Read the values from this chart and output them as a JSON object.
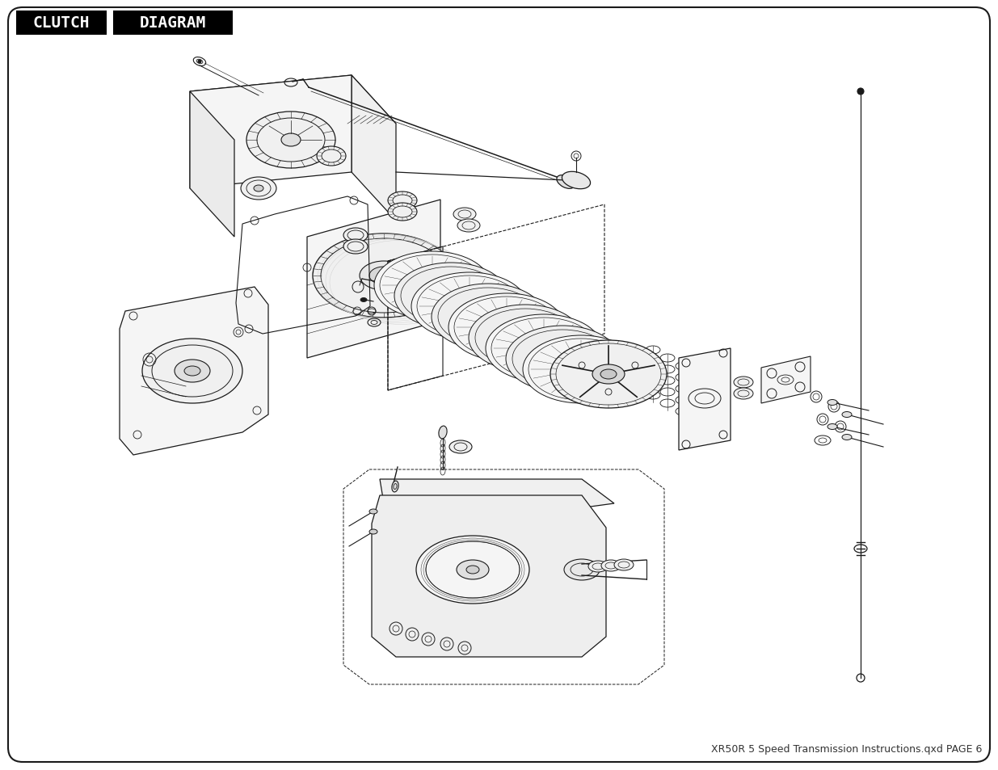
{
  "title_word1": "CLUTCH",
  "title_word2": "DIAGRAM",
  "footer_text": "XR50R 5 Speed Transmission Instructions.qxd PAGE 6",
  "background_color": "#ffffff",
  "border_color": "#000000",
  "title_bg_color": "#000000",
  "title_text_color": "#ffffff",
  "title_fontsize": 15,
  "footer_fontsize": 9,
  "line_color": "#1a1a1a",
  "lw": 0.8
}
